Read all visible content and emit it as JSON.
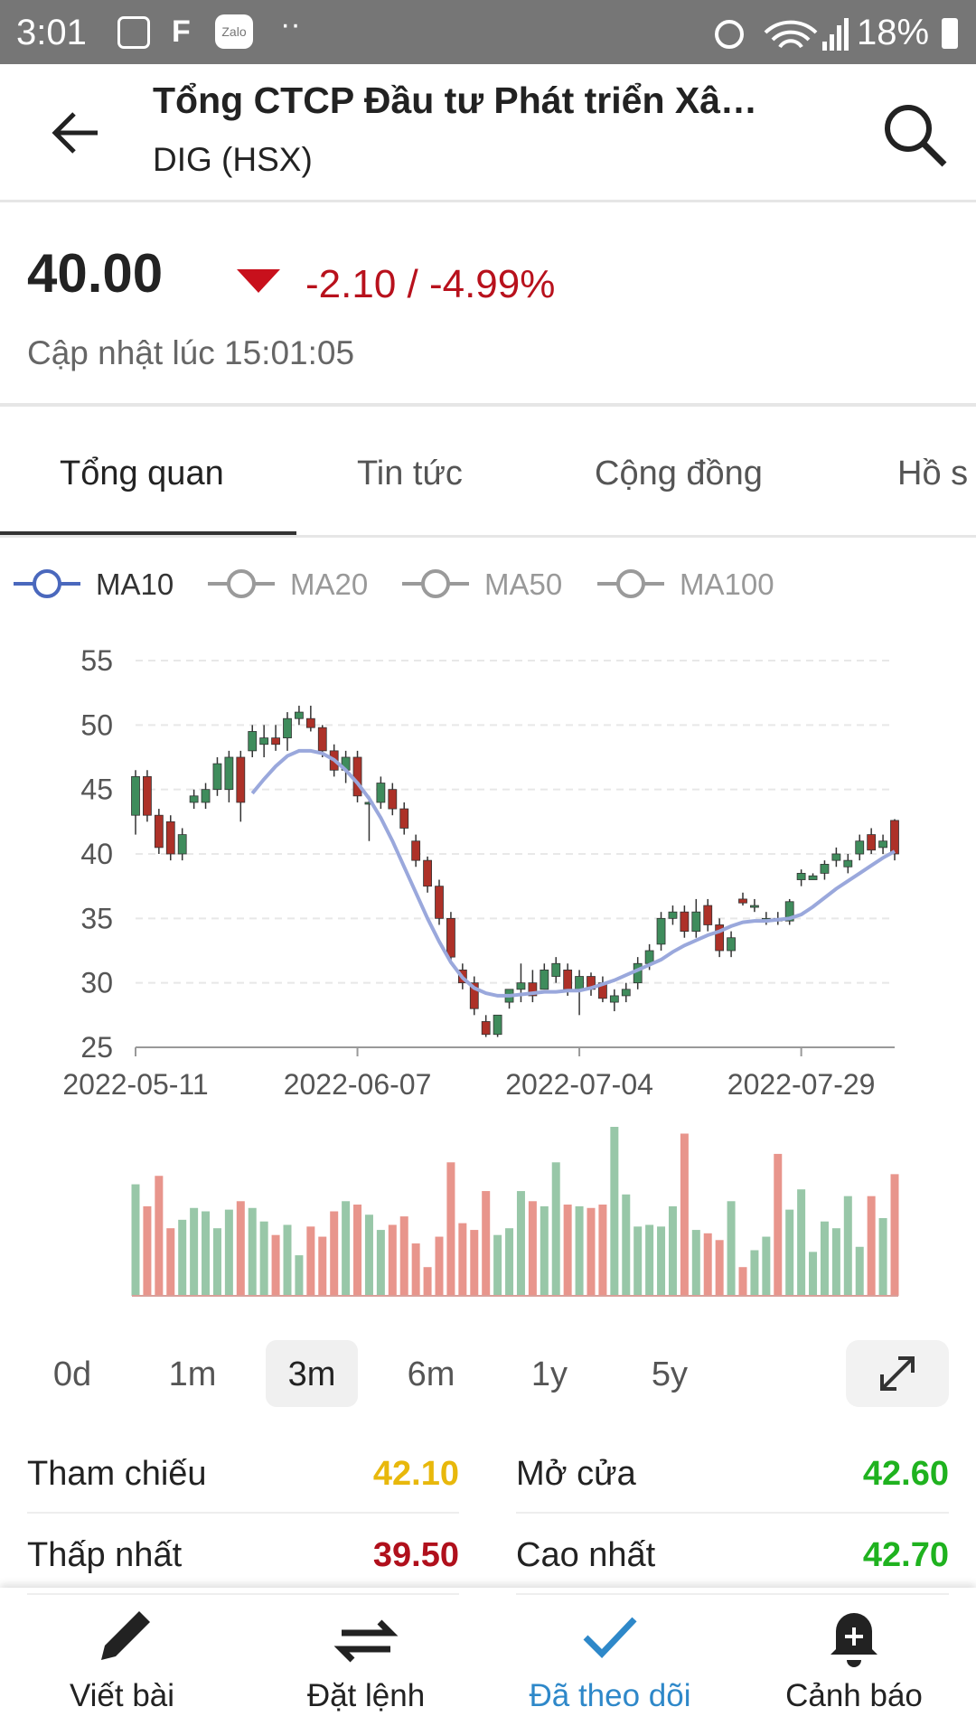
{
  "status_bar": {
    "time": "3:01",
    "icons": [
      "F",
      "Zalo"
    ],
    "battery": "18%"
  },
  "header": {
    "title": "Tổng CTCP Đầu tư Phát triển Xâ…",
    "subtitle": "DIG (HSX)"
  },
  "quote": {
    "price": "40.00",
    "change": "-2.10 / -4.99%",
    "updated": "Cập nhật lúc 15:01:05"
  },
  "tabs": [
    "Tổng quan",
    "Tin tức",
    "Cộng đồng",
    "Hồ s"
  ],
  "chart_data": {
    "type": "candlestick",
    "legend": [
      "MA10",
      "MA20",
      "MA50",
      "MA100"
    ],
    "categories": [
      "2022-05-11",
      null,
      null,
      null,
      null,
      null,
      null,
      null,
      null,
      null,
      null,
      null,
      null,
      null,
      null,
      null,
      null,
      null,
      null,
      "2022-06-07",
      null,
      null,
      null,
      null,
      null,
      null,
      null,
      null,
      null,
      null,
      null,
      null,
      null,
      null,
      null,
      null,
      null,
      null,
      "2022-07-04",
      null,
      null,
      null,
      null,
      null,
      null,
      null,
      null,
      null,
      null,
      null,
      null,
      null,
      null,
      null,
      null,
      null,
      null,
      "2022-07-29",
      null,
      null,
      null,
      null,
      null,
      null,
      null,
      null
    ],
    "ohlc": [
      [
        43,
        46.5,
        41.5,
        46
      ],
      [
        46,
        46.5,
        42.5,
        43
      ],
      [
        43,
        43.5,
        40,
        40.5
      ],
      [
        42.5,
        43,
        39.5,
        40
      ],
      [
        40,
        42,
        39.5,
        41.5
      ],
      [
        44,
        45,
        43.5,
        44.5
      ],
      [
        44,
        45.5,
        43.5,
        45
      ],
      [
        45,
        47.5,
        44.5,
        47
      ],
      [
        45,
        48,
        44,
        47.5
      ],
      [
        47.5,
        48,
        42.5,
        44
      ],
      [
        48,
        50,
        47.5,
        49.5
      ],
      [
        48.5,
        50,
        47.5,
        49
      ],
      [
        49,
        50,
        48,
        48.5
      ],
      [
        49,
        51,
        48,
        50.5
      ],
      [
        50.5,
        51.5,
        50,
        51
      ],
      [
        50.5,
        51.5,
        49.5,
        49.8
      ],
      [
        49.8,
        50,
        47.5,
        48
      ],
      [
        48,
        48.5,
        46,
        46.5
      ],
      [
        46.5,
        48,
        45.5,
        47.5
      ],
      [
        47.5,
        48,
        44,
        44.5
      ],
      [
        44,
        44.5,
        41,
        44
      ],
      [
        44,
        46,
        43.5,
        45.5
      ],
      [
        45,
        45.5,
        43,
        43.5
      ],
      [
        43.5,
        44,
        41.5,
        42
      ],
      [
        41,
        41.5,
        39,
        39.5
      ],
      [
        39.5,
        39.8,
        37,
        37.5
      ],
      [
        37.5,
        38,
        34.5,
        35
      ],
      [
        35,
        35.5,
        31.5,
        32
      ],
      [
        31,
        31.5,
        29.5,
        30
      ],
      [
        30,
        30.5,
        27.5,
        28
      ],
      [
        27,
        27.5,
        25.8,
        26
      ],
      [
        26,
        27.5,
        25.8,
        27.5
      ],
      [
        28.5,
        29.5,
        28,
        29.5
      ],
      [
        29.5,
        31.5,
        28.5,
        30
      ],
      [
        30,
        31,
        28.5,
        29
      ],
      [
        29.5,
        31.5,
        29.5,
        31
      ],
      [
        30.5,
        32,
        30,
        31.5
      ],
      [
        31,
        31.5,
        29,
        29.5
      ],
      [
        29.5,
        31,
        27.5,
        30.5
      ],
      [
        30.5,
        30.8,
        29,
        29.5
      ],
      [
        30,
        30.5,
        28.5,
        28.8
      ],
      [
        28.5,
        29.5,
        27.8,
        29
      ],
      [
        29,
        30,
        28.5,
        29.5
      ],
      [
        30,
        32,
        29.5,
        31.5
      ],
      [
        31.5,
        33,
        31,
        32.5
      ],
      [
        33,
        35.5,
        32.5,
        35
      ],
      [
        35,
        36,
        34.5,
        35.5
      ],
      [
        35.5,
        36,
        33.5,
        34
      ],
      [
        34,
        36.5,
        33.5,
        35.5
      ],
      [
        36,
        36.5,
        34,
        34.5
      ],
      [
        34.5,
        35,
        32,
        32.5
      ],
      [
        32.5,
        34,
        32,
        33.5
      ],
      [
        36.5,
        37,
        36,
        36.2
      ],
      [
        36,
        36.5,
        35.5,
        36
      ],
      [
        35,
        35.5,
        34.5,
        35
      ],
      [
        35,
        35.5,
        34.5,
        34.8
      ],
      [
        34.8,
        36.5,
        34.5,
        36.3
      ],
      [
        38,
        38.8,
        37.5,
        38.5
      ],
      [
        38,
        38.5,
        38,
        38.3
      ],
      [
        38.5,
        39.5,
        38,
        39.2
      ],
      [
        39.5,
        40.5,
        39,
        40
      ],
      [
        39,
        40,
        38.5,
        39.5
      ],
      [
        40,
        41.5,
        39.5,
        41
      ],
      [
        41.5,
        42,
        40,
        40.3
      ],
      [
        40.5,
        41.5,
        40,
        41
      ],
      [
        42.6,
        42.7,
        39.5,
        40
      ]
    ],
    "up_color": "#3f8c5c",
    "down_color": "#ad3128",
    "series": [
      {
        "name": "MA10",
        "color": "#9aa8dc",
        "values": [
          null,
          null,
          null,
          null,
          null,
          null,
          null,
          null,
          null,
          null,
          44.7,
          45.8,
          46.8,
          47.6,
          48,
          48,
          47.8,
          47.3,
          46.5,
          45.5,
          44.3,
          42.8,
          41,
          39,
          37,
          35,
          33.2,
          31.6,
          30.4,
          29.6,
          29.2,
          29,
          29,
          29.1,
          29.2,
          29.3,
          29.3,
          29.4,
          29.4,
          29.6,
          29.9,
          30.2,
          30.6,
          31,
          31.4,
          31.8,
          32.4,
          32.9,
          33.3,
          33.7,
          34,
          34.4,
          34.7,
          34.8,
          34.8,
          34.9,
          35,
          35.3,
          35.9,
          36.6,
          37.3,
          37.9,
          38.5,
          39.1,
          39.7,
          40.2
        ]
      }
    ],
    "volume": [
      66,
      53,
      71,
      40,
      45,
      52,
      50,
      40,
      51,
      56,
      52,
      44,
      36,
      42,
      24,
      41,
      35,
      50,
      56,
      54,
      48,
      39,
      42,
      47,
      31,
      17,
      35,
      79,
      43,
      39,
      62,
      36,
      40,
      62,
      56,
      53,
      79,
      54,
      53,
      52,
      54,
      100,
      60,
      41,
      42,
      41,
      53,
      96,
      39,
      37,
      33,
      56,
      17,
      27,
      35,
      84,
      51,
      63,
      26,
      44,
      40,
      59,
      29,
      59,
      46,
      72
    ],
    "volume_up_color": "#98c7a8",
    "volume_down_color": "#e8958c",
    "ylim": [
      25,
      55
    ],
    "yticks": [
      25,
      30,
      35,
      40,
      45,
      50,
      55
    ],
    "grid": true
  },
  "ranges": [
    "0d",
    "1m",
    "3m",
    "6m",
    "1y",
    "5y"
  ],
  "selected_range": 2,
  "stats": [
    {
      "label": "Tham chiếu",
      "value": "42.10",
      "color": "#e8b80c"
    },
    {
      "label": "Mở cửa",
      "value": "42.60",
      "color": "#1fb21f"
    },
    {
      "label": "Thấp nhất",
      "value": "39.50",
      "color": "#b0101c"
    },
    {
      "label": "Cao nhất",
      "value": "42.70",
      "color": "#1fb21f"
    }
  ],
  "nav": [
    "Viết bài",
    "Đặt lệnh",
    "Đã theo dõi",
    "Cảnh báo"
  ]
}
